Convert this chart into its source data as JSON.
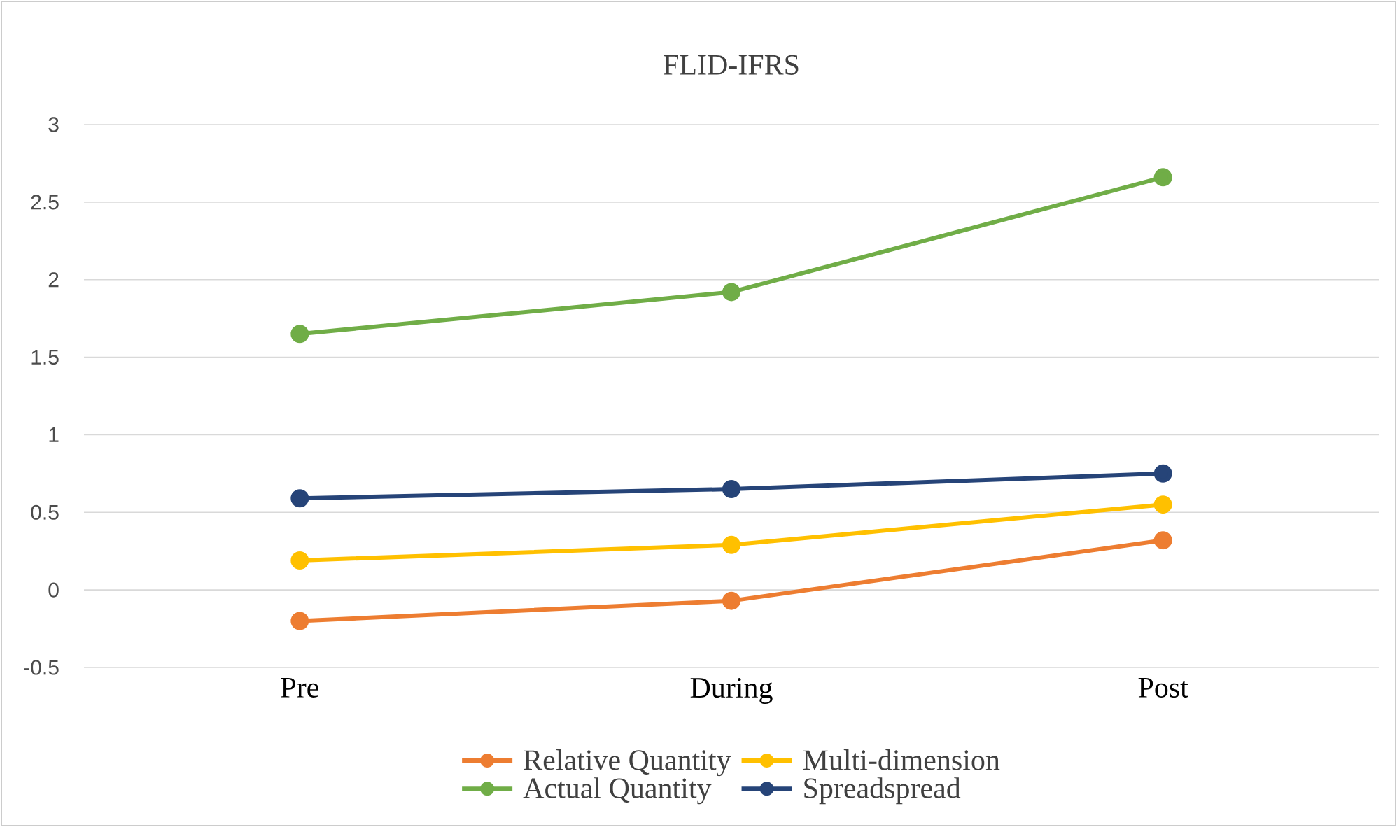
{
  "chart_data": {
    "type": "line",
    "title": "FLID-IFRS",
    "categories": [
      "Pre",
      "During",
      "Post"
    ],
    "series": [
      {
        "name": "Relative Quantity",
        "color": "#ed7d31",
        "values": [
          -0.2,
          -0.07,
          0.32
        ]
      },
      {
        "name": "Multi-dimension",
        "color": "#ffc000",
        "values": [
          0.19,
          0.29,
          0.55
        ]
      },
      {
        "name": "Actual Quantity",
        "color": "#70ad47",
        "values": [
          1.65,
          1.92,
          2.66
        ]
      },
      {
        "name": "Spreadspread",
        "color": "#264478",
        "values": [
          0.59,
          0.65,
          0.75
        ]
      }
    ],
    "ylim": [
      -0.5,
      3
    ],
    "yticks": [
      -0.5,
      0,
      0.5,
      1,
      1.5,
      2,
      2.5,
      3
    ],
    "grid": "y",
    "legend": "bottom",
    "marker": "circle",
    "line_style": "solid"
  }
}
